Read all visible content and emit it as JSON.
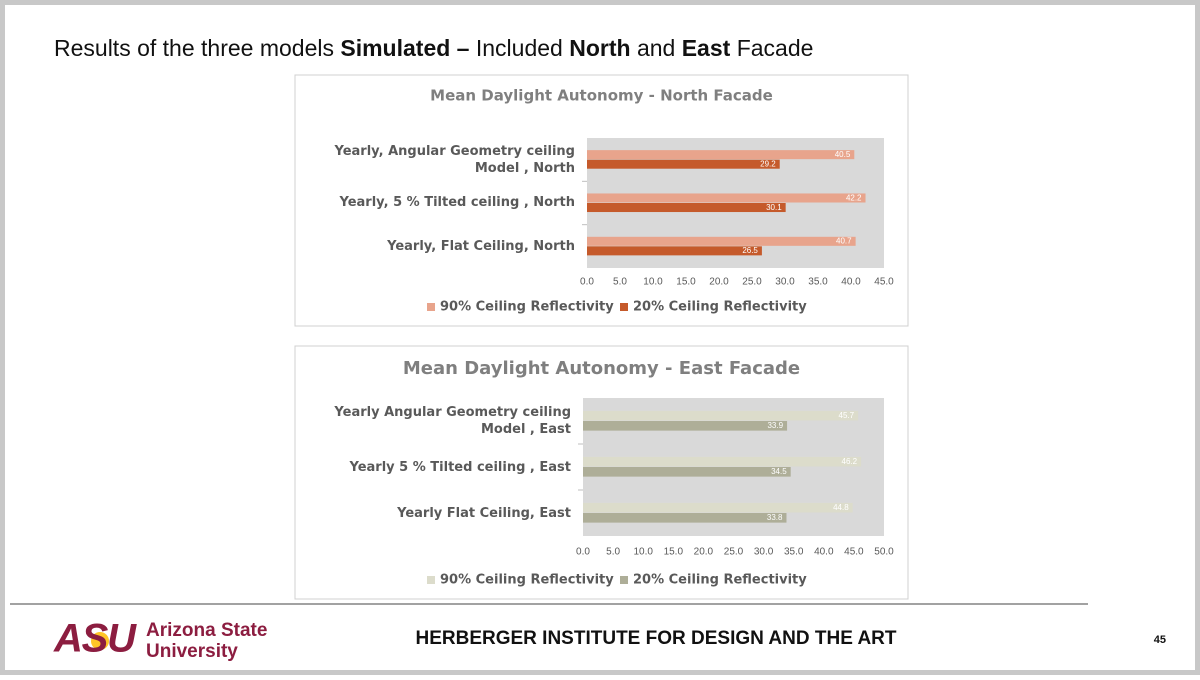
{
  "slide": {
    "title": [
      {
        "text": "Results of the three models ",
        "bold": false
      },
      {
        "text": "Simulated –",
        "bold": true
      },
      {
        "text": " Included ",
        "bold": false
      },
      {
        "text": "North",
        "bold": true
      },
      {
        "text": " and ",
        "bold": false
      },
      {
        "text": "East",
        "bold": true
      },
      {
        "text": " Facade",
        "bold": false
      }
    ],
    "logo": {
      "mark": "ASU",
      "name_line1": "Arizona State",
      "name_line2": "University"
    },
    "footer": "HERBERGER INSTITUTE FOR DESIGN AND THE ART",
    "page_number": "45"
  },
  "chart_data": [
    {
      "type": "hbar",
      "title": "Mean Daylight Autonomy - North Facade",
      "categories": [
        "Yearly, Angular Geometry ceiling Model , North",
        "Yearly, 5 % Tilted ceiling , North",
        "Yearly, Flat Ceiling, North"
      ],
      "series": [
        {
          "name": "90% Ceiling Reflectivity",
          "color": "#e8a48c",
          "values": [
            40.5,
            42.2,
            40.7
          ]
        },
        {
          "name": "20% Ceiling Reflectivity",
          "color": "#c55a2b",
          "values": [
            29.2,
            30.1,
            26.5
          ]
        }
      ],
      "xlim": [
        0,
        45
      ],
      "xticks": [
        {
          "value": 0,
          "label": "0.0"
        },
        {
          "value": 5,
          "label": "5.0"
        },
        {
          "value": 10,
          "label": "10.0"
        },
        {
          "value": 15,
          "label": "15.0"
        },
        {
          "value": 20,
          "label": "20.0"
        },
        {
          "value": 25,
          "label": "25.0"
        },
        {
          "value": 30,
          "label": "30.0"
        },
        {
          "value": 35,
          "label": "35.0"
        },
        {
          "value": 40,
          "label": "40.0"
        },
        {
          "value": 45,
          "label": "45.0"
        }
      ],
      "legend": "bottom"
    },
    {
      "type": "hbar",
      "title": "Mean Daylight Autonomy - East Facade",
      "categories": [
        "Yearly Angular Geometry ceiling Model , East",
        "Yearly 5 % Tilted ceiling , East",
        "Yearly Flat Ceiling, East"
      ],
      "series": [
        {
          "name": "90% Ceiling Reflectivity",
          "color": "#dcdccb",
          "values": [
            45.7,
            46.2,
            44.8
          ]
        },
        {
          "name": "20% Ceiling Reflectivity",
          "color": "#aeae98",
          "values": [
            33.9,
            34.5,
            33.8
          ]
        }
      ],
      "xlim": [
        0,
        50
      ],
      "xticks": [
        {
          "value": 0,
          "label": "0.0"
        },
        {
          "value": 5,
          "label": "5.0"
        },
        {
          "value": 10,
          "label": "10.0"
        },
        {
          "value": 15,
          "label": "15.0"
        },
        {
          "value": 20,
          "label": "20.0"
        },
        {
          "value": 25,
          "label": "25.0"
        },
        {
          "value": 30,
          "label": "30.0"
        },
        {
          "value": 35,
          "label": "35.0"
        },
        {
          "value": 40,
          "label": "40.0"
        },
        {
          "value": 45,
          "label": "45.0"
        },
        {
          "value": 50,
          "label": "50.0"
        }
      ],
      "legend": "bottom"
    }
  ]
}
